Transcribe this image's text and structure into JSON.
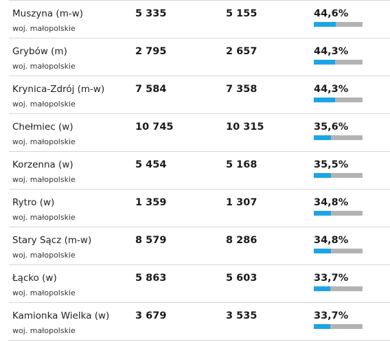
{
  "colors": {
    "bar_fill": "#1ba5e6",
    "bar_track": "#b3b3b3",
    "divider": "#d6d6d6"
  },
  "rows": [
    {
      "name": "Muszyna (m-w)",
      "region": "woj. małopolskie",
      "value1": "5 335",
      "value2": "5 155",
      "percent": "44,6%",
      "fraction": 0.446
    },
    {
      "name": "Grybów (m)",
      "region": "woj. małopolskie",
      "value1": "2 795",
      "value2": "2 657",
      "percent": "44,3%",
      "fraction": 0.443
    },
    {
      "name": "Krynica-Zdrój (m-w)",
      "region": "woj. małopolskie",
      "value1": "7 584",
      "value2": "7 358",
      "percent": "44,3%",
      "fraction": 0.443
    },
    {
      "name": "Chełmiec (w)",
      "region": "woj. małopolskie",
      "value1": "10 745",
      "value2": "10 315",
      "percent": "35,6%",
      "fraction": 0.356
    },
    {
      "name": "Korzenna (w)",
      "region": "woj. małopolskie",
      "value1": "5 454",
      "value2": "5 168",
      "percent": "35,5%",
      "fraction": 0.355
    },
    {
      "name": "Rytro (w)",
      "region": "woj. małopolskie",
      "value1": "1 359",
      "value2": "1 307",
      "percent": "34,8%",
      "fraction": 0.348
    },
    {
      "name": "Stary Sącz (m-w)",
      "region": "woj. małopolskie",
      "value1": "8 579",
      "value2": "8 286",
      "percent": "34,8%",
      "fraction": 0.348
    },
    {
      "name": "Łącko (w)",
      "region": "woj. małopolskie",
      "value1": "5 863",
      "value2": "5 603",
      "percent": "33,7%",
      "fraction": 0.337
    },
    {
      "name": "Kamionka Wielka (w)",
      "region": "woj. małopolskie",
      "value1": "3 679",
      "value2": "3 535",
      "percent": "33,7%",
      "fraction": 0.337
    }
  ]
}
